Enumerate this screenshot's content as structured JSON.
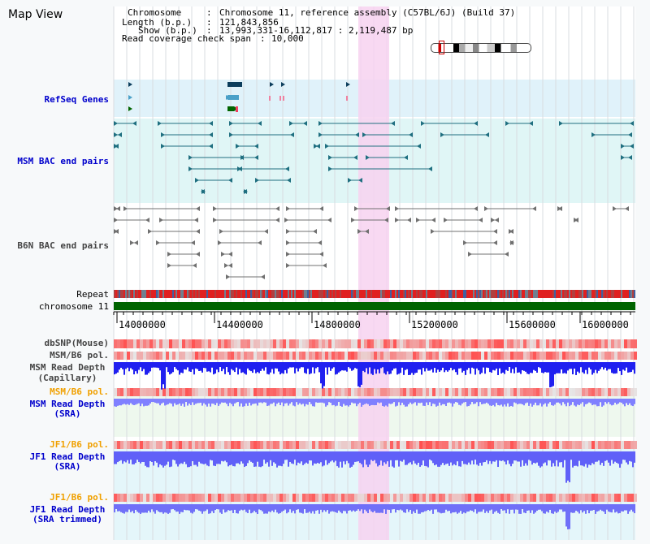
{
  "title": "Map View",
  "info": {
    "chromosome_label": "Chromosome",
    "chromosome_value": "Chromosome 11, reference assembly (C57BL/6J) (Build 37)",
    "length_label": "Length (b.p.)",
    "length_value": "121,843,856",
    "show_label": "Show (b.p.)",
    "show_value": "13,993,331-16,112,817 : 2,119,487 bp",
    "span_label": "Read coverage check span",
    "span_value": "10,000"
  },
  "tracks": {
    "refseq": "RefSeq Genes",
    "msm_bac": "MSM BAC end pairs",
    "b6n_bac": "B6N BAC end pairs",
    "repeat": "Repeat",
    "chrom": "chromosome 11",
    "dbsnp": "dbSNP(Mouse)",
    "msm_b6_pol": "MSM/B6 pol.",
    "msm_depth_cap_1": "MSM Read Depth",
    "msm_depth_cap_2": "(Capillary)",
    "msm_b6_pol_2": "MSM/B6 pol.",
    "msm_depth_sra_1": "MSM Read Depth",
    "msm_depth_sra_2": "(SRA)",
    "jf1_b6_pol": "JF1/B6 pol.",
    "jf1_depth_sra_1": "JF1 Read Depth",
    "jf1_depth_sra_2": "(SRA)",
    "jf1_b6_pol_2": "JF1/B6 pol.",
    "jf1_depth_trim_1": "JF1 Read Depth",
    "jf1_depth_trim_2": "(SRA trimmed)"
  },
  "axis_ticks": [
    "14000000",
    "14400000",
    "14800000",
    "15200000",
    "15600000",
    "16000000"
  ],
  "colors": {
    "blue_label": "#0000cc",
    "orange_label": "#f0a000",
    "highlight": "#f7d2f0",
    "refseq_bg": "#e0f2fa",
    "msm_bg": "#e0f6f6",
    "chrom_bar": "#006400"
  }
}
